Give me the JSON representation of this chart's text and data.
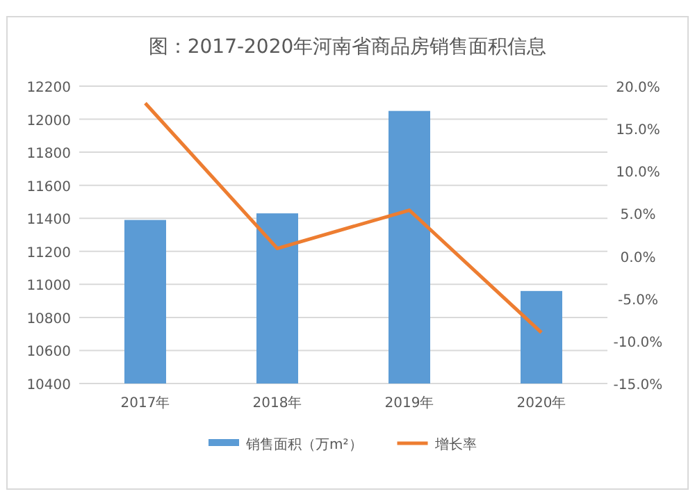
{
  "chart_data": {
    "type": "bar",
    "title": "图：2017-2020年河南省商品房销售面积信息",
    "categories": [
      "2017年",
      "2018年",
      "2019年",
      "2020年"
    ],
    "series": [
      {
        "name": "销售面积（万m²）",
        "color": "#5b9bd5",
        "values": [
          11390,
          11430,
          12050,
          10960
        ]
      },
      {
        "name": "增长率",
        "type": "line",
        "axis": "y2",
        "color": "#ed7d31",
        "values": [
          18.0,
          0.9,
          5.4,
          -9.0
        ]
      }
    ],
    "ylim": [
      10400,
      12200
    ],
    "yticks": [
      10400,
      10600,
      10800,
      11000,
      11200,
      11400,
      11600,
      11800,
      12000,
      12200
    ],
    "y2lim": [
      -15,
      20
    ],
    "y2ticks": [
      {
        "value": -15,
        "label": "-15.0%"
      },
      {
        "value": -10,
        "label": "-10.0%"
      },
      {
        "value": -5,
        "label": "-5.0%"
      },
      {
        "value": 0,
        "label": "0.0%"
      },
      {
        "value": 5,
        "label": "5.0%"
      },
      {
        "value": 10,
        "label": "10.0%"
      },
      {
        "value": 15,
        "label": "15.0%"
      },
      {
        "value": 20,
        "label": "20.0%"
      }
    ],
    "grid": "y",
    "legend": "bottom"
  }
}
